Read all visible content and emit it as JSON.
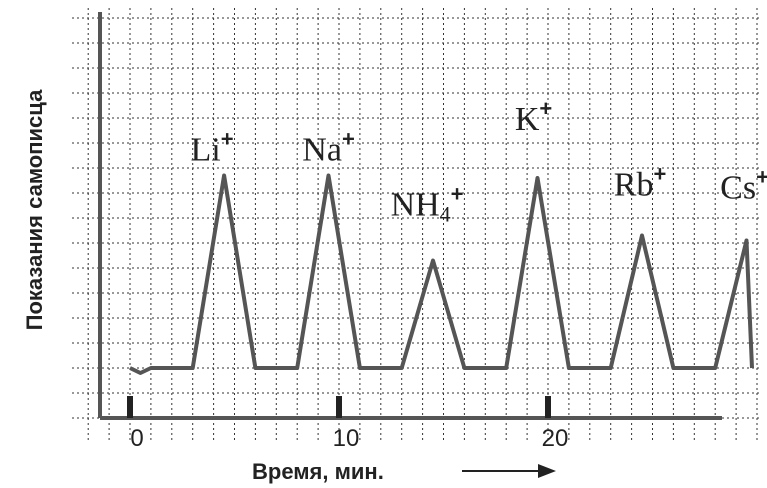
{
  "chart_data": {
    "type": "line",
    "xlabel": "Время, мин.",
    "ylabel": "Показания самописца",
    "xlim": [
      -1,
      30
    ],
    "ylim": [
      0,
      10
    ],
    "x_ticks": [
      0,
      10,
      20
    ],
    "tick_labels": [
      "0",
      "10",
      "20"
    ],
    "grid": true,
    "baseline": 2.0,
    "colors": {
      "line": "#555555",
      "axis": "#555555",
      "grid": "#333333",
      "text": "#222222"
    },
    "series": [
      {
        "x": [
          0,
          0.5,
          1,
          1.5,
          2,
          3.0,
          4.5,
          6.0,
          7.0,
          8.0,
          9.5,
          11.0,
          12.0,
          13.0,
          14.5,
          16.0,
          17.0,
          18.0,
          19.5,
          21.0,
          22.0,
          23.0,
          24.5,
          26.0,
          27.0,
          28.0,
          29.5,
          31.0
        ],
        "y": [
          2.0,
          1.8,
          2.0,
          2.0,
          2.0,
          2.0,
          9.7,
          2.0,
          2.0,
          2.0,
          9.7,
          2.0,
          2.0,
          2.0,
          6.3,
          2.0,
          2.0,
          2.0,
          9.6,
          2.0,
          2.0,
          2.0,
          7.3,
          2.0,
          2.0,
          2.0,
          7.1,
          2.0
        ]
      }
    ],
    "peaks": [
      {
        "symbol": "Li",
        "sub": "",
        "charge": "+",
        "x": 4.5,
        "y": 9.7
      },
      {
        "symbol": "Na",
        "sub": "",
        "charge": "+",
        "x": 9.5,
        "y": 9.7
      },
      {
        "symbol": "NH",
        "sub": "4",
        "charge": "+",
        "x": 14.5,
        "y": 6.3
      },
      {
        "symbol": "K",
        "sub": "",
        "charge": "+",
        "x": 19.5,
        "y": 9.6
      },
      {
        "symbol": "Rb",
        "sub": "",
        "charge": "+",
        "x": 24.5,
        "y": 7.3
      },
      {
        "symbol": "Cs",
        "sub": "",
        "charge": "+",
        "x": 29.5,
        "y": 7.1
      }
    ]
  }
}
